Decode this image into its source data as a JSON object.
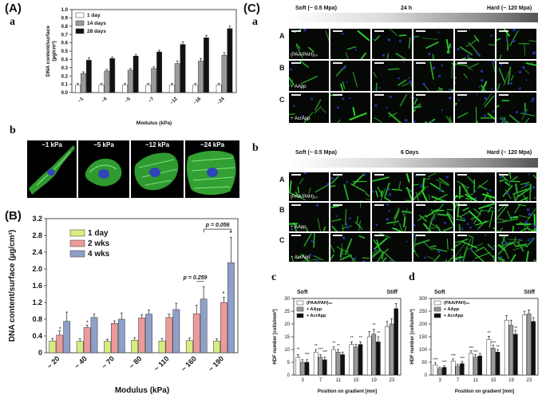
{
  "panels": {
    "A": "(A)",
    "B": "(B)",
    "C": "(C)",
    "a_letter": "a",
    "b_letter": "b",
    "c_letter": "c",
    "d_letter": "d"
  },
  "panelA_b": {
    "captions": [
      "~1 kPa",
      "~5 kPa",
      "~12 kPa",
      "~24 kPa"
    ]
  },
  "panelC_a": {
    "soft": "Soft (~ 0.5 Mpa)",
    "time": "24 h",
    "hard": "Hard (~ 120 Mpa)",
    "rows": [
      "A",
      "B",
      "C"
    ],
    "row_tags": [
      "(PAA/PAH)₂₀",
      "+ AApp",
      "+ AcrApp"
    ]
  },
  "panelC_b": {
    "soft": "Soft (~ 0.5 Mpa)",
    "time": "6 Days",
    "hard": "Hard (~ 120 Mpa)",
    "rows": [
      "A",
      "B",
      "C"
    ],
    "row_tags": [
      "(PAA/PAH)₂₀",
      "+ AApp",
      "+ AcrApp"
    ]
  },
  "chart_data": [
    {
      "id": "A-a",
      "type": "bar",
      "categories": [
        "~1",
        "~4",
        "~5",
        "~7",
        "~12",
        "~16",
        "~24"
      ],
      "series": [
        {
          "name": "1 day",
          "values": [
            0.09,
            0.09,
            0.09,
            0.09,
            0.09,
            0.09,
            0.09
          ],
          "color": "#ffffff"
        },
        {
          "name": "14 days",
          "values": [
            0.23,
            0.26,
            0.27,
            0.29,
            0.35,
            0.38,
            0.45
          ],
          "color": "#9a9a9a"
        },
        {
          "name": "28 days",
          "values": [
            0.39,
            0.41,
            0.44,
            0.49,
            0.58,
            0.66,
            0.77
          ],
          "color": "#111111"
        }
      ],
      "errors": [
        [
          0.02,
          0.02,
          0.02,
          0.02,
          0.02,
          0.02,
          0.02
        ],
        [
          0.02,
          0.02,
          0.02,
          0.02,
          0.03,
          0.03,
          0.03
        ],
        [
          0.03,
          0.02,
          0.02,
          0.02,
          0.03,
          0.03,
          0.03
        ]
      ],
      "xlabel": "Modulus (kPa)",
      "ylabel": "DNA content/surface\n(µg/cm²)",
      "ylim": [
        0,
        1.0
      ],
      "yticks": [
        "0.0",
        "0.1",
        "0.2",
        "0.3",
        "0.4",
        "0.5",
        "0.6",
        "0.7",
        "0.8",
        "0.9",
        "1.0"
      ],
      "legend_placement": "top-left"
    },
    {
      "id": "B",
      "type": "bar",
      "categories": [
        "~ 20",
        "~ 40",
        "~ 70",
        "~ 80",
        "~ 110",
        "~ 160",
        "~ 190"
      ],
      "series": [
        {
          "name": "1 day",
          "values": [
            0.28,
            0.27,
            0.27,
            0.3,
            0.28,
            0.29,
            0.28
          ],
          "color": "#d9ec82"
        },
        {
          "name": "2 wks",
          "values": [
            0.42,
            0.6,
            0.7,
            0.83,
            0.84,
            0.93,
            1.2
          ],
          "color": "#ec9a9a"
        },
        {
          "name": "4 wks",
          "values": [
            0.75,
            0.84,
            0.8,
            0.92,
            1.03,
            1.28,
            2.15
          ],
          "color": "#8ea0c8"
        }
      ],
      "errors": [
        [
          0.06,
          0.06,
          0.05,
          0.06,
          0.06,
          0.06,
          0.05
        ],
        [
          0.1,
          0.06,
          0.06,
          0.08,
          0.08,
          0.2,
          0.12
        ],
        [
          0.22,
          0.08,
          0.15,
          0.1,
          0.15,
          0.3,
          0.6
        ]
      ],
      "xlabel": "Modulus (kPa)",
      "ylabel": "DNA content/surface (µg/cm²)",
      "ylim": [
        0,
        3.2
      ],
      "yticks": [
        "0",
        "0.4",
        "0.8",
        "1.2",
        "1.6",
        "2.0",
        "2.4",
        "2.8",
        "3.2"
      ],
      "annotations": [
        "p = 0.259",
        "p = 0.056",
        "*",
        "*",
        "*",
        "*"
      ],
      "legend_placement": "top-left"
    },
    {
      "id": "C-c",
      "type": "bar",
      "categories": [
        "3",
        "7",
        "11",
        "15",
        "19",
        "23"
      ],
      "series": [
        {
          "name": "(PAA/PAH)₂₀",
          "values": [
            7,
            9,
            10,
            12,
            15,
            19
          ],
          "color": "#ffffff"
        },
        {
          "name": "+ AApp",
          "values": [
            5,
            7,
            9,
            11,
            16,
            20
          ],
          "color": "#999999"
        },
        {
          "name": "+ AcrApp",
          "values": [
            5,
            6,
            8,
            12,
            13,
            26
          ],
          "color": "#111111"
        }
      ],
      "errors": [
        [
          1,
          1,
          1,
          1,
          2,
          2
        ],
        [
          1,
          1,
          1,
          1,
          2,
          2
        ],
        [
          1,
          1,
          1,
          1,
          2,
          2
        ]
      ],
      "xlabel": "Position on gradient [mm]",
      "ylabel": "HDF number [cells/mm²]",
      "ylim": [
        0,
        30
      ],
      "yticks": [
        "0",
        "5",
        "10",
        "15",
        "20",
        "25",
        "30"
      ],
      "top_labels": [
        "Soft",
        "Stiff"
      ],
      "annotations": [
        "**",
        "***",
        "**",
        "***",
        "***",
        "**",
        "**",
        "**",
        "**",
        "**",
        "**"
      ],
      "legend_placement": "top-left"
    },
    {
      "id": "C-d",
      "type": "bar",
      "categories": [
        "3",
        "7",
        "11",
        "15",
        "19",
        "23"
      ],
      "series": [
        {
          "name": "(PAA/PAH)₂₀",
          "values": [
            40,
            55,
            85,
            140,
            215,
            235
          ],
          "color": "#ffffff"
        },
        {
          "name": "+ AApp",
          "values": [
            25,
            35,
            70,
            105,
            195,
            240
          ],
          "color": "#999999"
        },
        {
          "name": "+ AcrApp",
          "values": [
            30,
            45,
            75,
            90,
            160,
            210
          ],
          "color": "#111111"
        }
      ],
      "errors": [
        [
          8,
          8,
          10,
          12,
          18,
          15
        ],
        [
          6,
          8,
          10,
          12,
          20,
          15
        ],
        [
          6,
          8,
          10,
          10,
          15,
          15
        ]
      ],
      "xlabel": "Position on gradient [mm]",
      "ylabel": "HDF number [cells/mm²]",
      "ylim": [
        0,
        300
      ],
      "yticks": [
        "0",
        "50",
        "100",
        "150",
        "200",
        "250",
        "300"
      ],
      "top_labels": [
        "Soft",
        "Stiff"
      ],
      "annotations": [
        "***",
        "***",
        "***",
        "***",
        "***",
        "***",
        "**",
        "***",
        "**",
        "**"
      ],
      "legend_placement": "top-left"
    }
  ]
}
